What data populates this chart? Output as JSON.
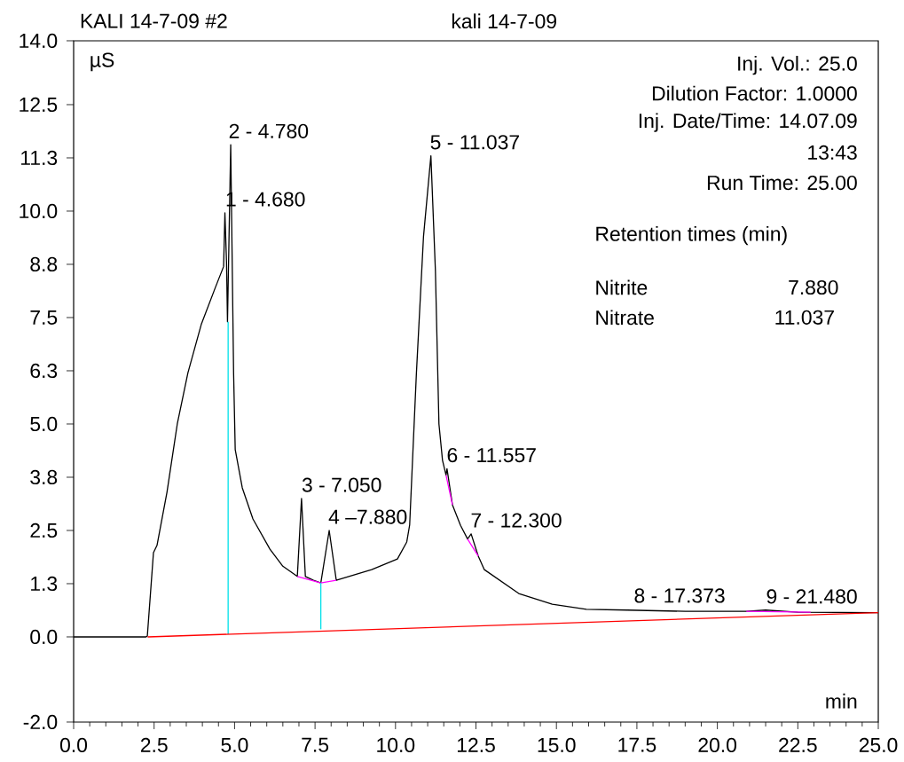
{
  "chart_data": {
    "type": "line",
    "title": "kali 14-7-09",
    "xlabel": "min",
    "ylabel": "µS",
    "xlim": [
      0,
      25
    ],
    "ylim": [
      -2,
      14
    ],
    "xticks": [
      {
        "value": 0,
        "label": "0.0"
      },
      {
        "value": 2.5,
        "label": "2.5"
      },
      {
        "value": 5,
        "label": "5.0"
      },
      {
        "value": 7.5,
        "label": "7.5"
      },
      {
        "value": 10,
        "label": "10.0"
      },
      {
        "value": 12.5,
        "label": "12.5"
      },
      {
        "value": 15,
        "label": "15.0"
      },
      {
        "value": 17.5,
        "label": "17.5"
      },
      {
        "value": 20,
        "label": "20.0"
      },
      {
        "value": 22.5,
        "label": "22.5"
      },
      {
        "value": 25,
        "label": "25.0"
      }
    ],
    "yticks": [
      {
        "value": -2,
        "label": "-2.0"
      },
      {
        "value": 0,
        "label": "0.0"
      },
      {
        "value": 1.25,
        "label": "1.3"
      },
      {
        "value": 2.5,
        "label": "2.5"
      },
      {
        "value": 3.75,
        "label": "3.8"
      },
      {
        "value": 5,
        "label": "5.0"
      },
      {
        "value": 6.25,
        "label": "6.3"
      },
      {
        "value": 7.5,
        "label": "7.5"
      },
      {
        "value": 8.75,
        "label": "8.8"
      },
      {
        "value": 10,
        "label": "10.0"
      },
      {
        "value": 11.25,
        "label": "11.3"
      },
      {
        "value": 12.5,
        "label": "12.5"
      },
      {
        "value": 14,
        "label": "14.0"
      }
    ],
    "marker": "none",
    "line_style": "solid",
    "series": [
      {
        "color": "#ff0000",
        "x": [
          2.3,
          25
        ],
        "values": [
          0,
          0.57
        ]
      },
      {
        "color": "#00e0e8",
        "x": [
          4.8,
          4.8
        ],
        "values": [
          0.06,
          7.4
        ]
      },
      {
        "color": "#00e0e8",
        "x": [
          7.68,
          7.68
        ],
        "values": [
          0.18,
          1.27
        ]
      },
      {
        "color": "#ff00ff",
        "x": [
          6.95,
          7.68,
          8.16
        ],
        "values": [
          1.42,
          1.27,
          1.33
        ]
      },
      {
        "color": "#ff00ff",
        "x": [
          11.57,
          11.77
        ],
        "values": [
          3.8,
          3.1
        ]
      },
      {
        "color": "#ff00ff",
        "x": [
          12.24,
          12.57
        ],
        "values": [
          2.3,
          1.9
        ]
      },
      {
        "color": "#ff00ff",
        "x": [
          20.9,
          22.9
        ],
        "values": [
          0.6,
          0.58
        ]
      },
      {
        "color": "#000000",
        "x": [
          0,
          2.25,
          2.29,
          2.48,
          2.59,
          2.9,
          3.22,
          3.55,
          3.97,
          4.4,
          4.66,
          4.7,
          4.75,
          4.78,
          4.88,
          4.97,
          5.02,
          5.24,
          5.57,
          6.1,
          6.5,
          6.95,
          7.08,
          7.2,
          7.45,
          7.68,
          7.94,
          8.16,
          9.26,
          10.06,
          10.35,
          10.44,
          10.65,
          10.87,
          11.1,
          11.24,
          11.35,
          11.46,
          11.57,
          11.6,
          11.77,
          12.02,
          12.24,
          12.35,
          12.57,
          12.76,
          13.83,
          14.87,
          15.93,
          17.2,
          19.0,
          20.9,
          21.5,
          22.5,
          25
        ],
        "values": [
          0,
          0,
          0.02,
          1.98,
          2.15,
          3.4,
          5.0,
          6.2,
          7.35,
          8.2,
          8.7,
          9.96,
          8.8,
          7.4,
          11.56,
          6.2,
          4.4,
          3.5,
          2.77,
          2.06,
          1.66,
          1.42,
          3.25,
          1.42,
          1.33,
          1.27,
          2.5,
          1.33,
          1.58,
          1.83,
          2.23,
          2.63,
          6.2,
          9.4,
          11.3,
          8.6,
          5.0,
          4.15,
          3.8,
          3.95,
          3.1,
          2.62,
          2.3,
          2.42,
          1.9,
          1.58,
          1.02,
          0.77,
          0.65,
          0.63,
          0.6,
          0.6,
          0.63,
          0.58,
          0.57
        ]
      }
    ],
    "annotations": [
      "KALI 14-7-09 #2",
      "Inj. Vol.: 25.0",
      "Dilution Factor: 1.0000",
      "Inj. Date/Time: 14.07.09",
      "13:43",
      "Run Time: 25.00",
      "Retention times (min)",
      "Nitrite",
      "7.880",
      "Nitrate",
      "11.037",
      {
        "text": "1 - 4.680",
        "x": 4.68,
        "y": 9.96
      },
      {
        "text": "2 - 4.780",
        "x": 4.78,
        "y": 11.56
      },
      {
        "text": "3 - 7.050",
        "x": 7.05,
        "y": 3.25
      },
      {
        "text": "4 –7.880",
        "x": 7.88,
        "y": 2.5
      },
      {
        "text": "5 - 11.037",
        "x": 11.037,
        "y": 11.3
      },
      {
        "text": "6 - 11.557",
        "x": 11.557,
        "y": 3.95
      },
      {
        "text": "7 - 12.300",
        "x": 12.3,
        "y": 2.42
      },
      {
        "text": "8 - 17.373",
        "x": 17.373,
        "y": 0.65
      },
      {
        "text": "9 - 21.480",
        "x": 21.48,
        "y": 0.63
      }
    ]
  }
}
